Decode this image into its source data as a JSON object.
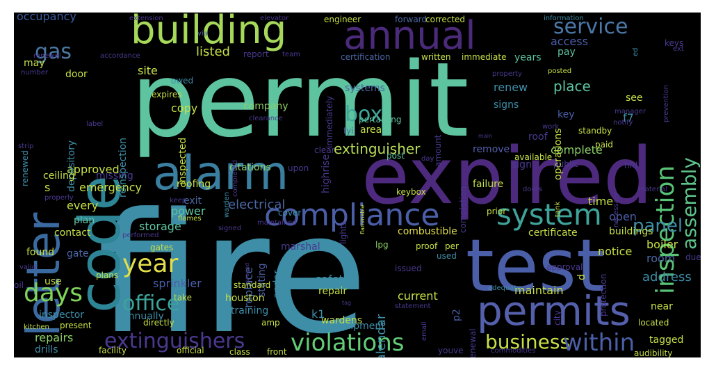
{
  "colors": {
    "background": "#000000",
    "frame": "#ffffff",
    "palette": [
      "#440154",
      "#472c7a",
      "#3b528b",
      "#2c728e",
      "#21908d",
      "#27ad81",
      "#5cc863",
      "#aadc32",
      "#fde725"
    ]
  },
  "words": [
    {
      "text": "permit",
      "color": "#5ec4a0"
    },
    {
      "text": "fire",
      "color": "#3e8ea8"
    },
    {
      "text": "expired",
      "color": "#4e2a7f"
    },
    {
      "text": "test",
      "color": "#4b5fa8"
    },
    {
      "text": "code",
      "color": "#2e8596"
    },
    {
      "text": "letter",
      "color": "#3b6aa0"
    },
    {
      "text": "alarm",
      "color": "#3a7fa0"
    },
    {
      "text": "building",
      "color": "#a6d85a"
    },
    {
      "text": "annual",
      "color": "#4b2a7a"
    },
    {
      "text": "permits",
      "color": "#5560ad"
    },
    {
      "text": "compliance",
      "color": "#4b5fa8"
    },
    {
      "text": "system",
      "color": "#3fa39a"
    },
    {
      "text": "inspection",
      "color": "#58c276"
    },
    {
      "text": "service",
      "color": "#4a78a8"
    },
    {
      "text": "assembly",
      "color": "#5dc38a"
    },
    {
      "text": "violations",
      "color": "#64cd78"
    },
    {
      "text": "business",
      "color": "#c7e045"
    },
    {
      "text": "within",
      "color": "#4b5fa8"
    },
    {
      "text": "extinguishers",
      "color": "#4b3990"
    },
    {
      "text": "office",
      "color": "#3da39a"
    },
    {
      "text": "year",
      "color": "#e3df4a"
    },
    {
      "text": "days",
      "color": "#7fd35a"
    },
    {
      "text": "gas",
      "color": "#4a7aa4"
    },
    {
      "text": "box",
      "color": "#40a69a"
    },
    {
      "text": "panel",
      "color": "#3e8ea8"
    },
    {
      "text": "extinguisher",
      "color": "#b9df56"
    },
    {
      "text": "electrical",
      "color": "#4b68a5"
    },
    {
      "text": "emergency",
      "color": "#c7e045"
    },
    {
      "text": "repairs",
      "color": "#8cd068"
    },
    {
      "text": "k1",
      "color": "#3e8ea8"
    },
    {
      "text": "p2",
      "color": "#4b5fa8"
    },
    {
      "text": "occupancy",
      "color": "#3b5ba0"
    },
    {
      "text": "listed",
      "color": "#c7e045"
    },
    {
      "text": "site",
      "color": "#c7e045"
    },
    {
      "text": "may",
      "color": "#c7e045"
    },
    {
      "text": "access",
      "color": "#4b5fa8"
    },
    {
      "text": "pay",
      "color": "#5ec4a0"
    },
    {
      "text": "place",
      "color": "#5ec4a0"
    },
    {
      "text": "renew",
      "color": "#3e8ea8"
    },
    {
      "text": "door",
      "color": "#c7e045"
    },
    {
      "text": "copy",
      "color": "#c7e045"
    },
    {
      "text": "company",
      "color": "#8cd068"
    },
    {
      "text": "systems",
      "color": "#4b68a5"
    },
    {
      "text": "signs",
      "color": "#3e8ea8"
    },
    {
      "text": "key",
      "color": "#4b5fa8"
    },
    {
      "text": "f7",
      "color": "#3e8ea8"
    },
    {
      "text": "citations",
      "color": "#8cd068"
    },
    {
      "text": "area",
      "color": "#c7e045"
    },
    {
      "text": "approved",
      "color": "#c7e045"
    },
    {
      "text": "complete",
      "color": "#8cd068"
    },
    {
      "text": "remove",
      "color": "#5560ad"
    },
    {
      "text": "sign",
      "color": "#4b3990"
    },
    {
      "text": "time",
      "color": "#c7e045"
    },
    {
      "text": "every",
      "color": "#c7e045"
    },
    {
      "text": "exit",
      "color": "#4b68a5"
    },
    {
      "text": "power",
      "color": "#5ec4a0"
    },
    {
      "text": "plan",
      "color": "#5ec4a0"
    },
    {
      "text": "storage",
      "color": "#5ec4a0"
    },
    {
      "text": "replace",
      "color": "#4b68a5"
    },
    {
      "text": "stating",
      "color": "#4b5fa8"
    },
    {
      "text": "certificate",
      "color": "#c7e045"
    },
    {
      "text": "open",
      "color": "#4b5fa8"
    },
    {
      "text": "combustible",
      "color": "#e3df4a"
    },
    {
      "text": "marshal",
      "color": "#4b3990"
    },
    {
      "text": "andor",
      "color": "#3e8ea8"
    },
    {
      "text": "lpg",
      "color": "#8cd068"
    },
    {
      "text": "boiler",
      "color": "#c7e045"
    },
    {
      "text": "room",
      "color": "#4b68a5"
    },
    {
      "text": "notice",
      "color": "#c7e045"
    },
    {
      "text": "gate",
      "color": "#4b68a5"
    },
    {
      "text": "sprinkler",
      "color": "#4b5fa8"
    },
    {
      "text": "safety",
      "color": "#3e8ea8"
    },
    {
      "text": "houston",
      "color": "#c7e045"
    },
    {
      "text": "repair",
      "color": "#c7e045"
    },
    {
      "text": "current",
      "color": "#c7e045"
    },
    {
      "text": "maintain",
      "color": "#c7e045"
    },
    {
      "text": "address",
      "color": "#3e8ea8"
    },
    {
      "text": "inspector",
      "color": "#3e8ea8"
    },
    {
      "text": "annually",
      "color": "#3e8ea8"
    },
    {
      "text": "training",
      "color": "#3e8ea8"
    },
    {
      "text": "wardens",
      "color": "#c7e045"
    },
    {
      "text": "calendar",
      "color": "#3e8ea8"
    },
    {
      "text": "equipment",
      "color": "#3e8ea8"
    },
    {
      "text": "drills",
      "color": "#3e8ea8"
    },
    {
      "text": "near",
      "color": "#c7e045"
    },
    {
      "text": "tagged",
      "color": "#c7e045"
    },
    {
      "text": "missing",
      "color": "#4b3990"
    },
    {
      "text": "depository",
      "color": "#3e8ea8"
    },
    {
      "text": "reinspection",
      "color": "#3e8ea8"
    },
    {
      "text": "inspected",
      "color": "#c7e045"
    },
    {
      "text": "highrise",
      "color": "#4b3990"
    },
    {
      "text": "immediately",
      "color": "#4b3990"
    },
    {
      "text": "amount",
      "color": "#4b3990"
    },
    {
      "text": "completion",
      "color": "#4b3990"
    },
    {
      "text": "operations",
      "color": "#c7e045"
    },
    {
      "text": "renewed",
      "color": "#3e8ea8"
    },
    {
      "text": "renewal",
      "color": "#4b3990"
    },
    {
      "text": "lights",
      "color": "#4b3990"
    },
    {
      "text": "protection",
      "color": "#4b3990"
    },
    {
      "text": "roofing",
      "color": "#c7e045"
    },
    {
      "text": "roof",
      "color": "#4b3990"
    },
    {
      "text": "standby",
      "color": "#c7e045"
    },
    {
      "text": "see",
      "color": "#c7e045"
    },
    {
      "text": "public",
      "color": "#4b3990"
    },
    {
      "text": "hfd",
      "color": "#4b3990"
    },
    {
      "text": "pertaining",
      "color": "#5ec4a0"
    },
    {
      "text": "fyi",
      "color": "#4b68a5"
    },
    {
      "text": "post",
      "color": "#5ec4a0"
    },
    {
      "text": "years",
      "color": "#5ec4a0"
    },
    {
      "text": "corrected",
      "color": "#c7e045"
    },
    {
      "text": "forward",
      "color": "#4b68a5"
    },
    {
      "text": "information",
      "color": "#3e8ea8"
    },
    {
      "text": "keys",
      "color": "#4b3990"
    },
    {
      "text": "engineer",
      "color": "#c7e045"
    },
    {
      "text": "extension",
      "color": "#4b3990"
    },
    {
      "text": "elevator",
      "color": "#4b3990"
    },
    {
      "text": "via",
      "color": "#4b68a5"
    },
    {
      "text": "report",
      "color": "#4b3990"
    },
    {
      "text": "team",
      "color": "#4b3990"
    },
    {
      "text": "certification",
      "color": "#4b68a5"
    },
    {
      "text": "written",
      "color": "#c7e045"
    },
    {
      "text": "immediate",
      "color": "#c7e045"
    },
    {
      "text": "renewel",
      "color": "#4b3990"
    },
    {
      "text": "accordance",
      "color": "#4b3990"
    },
    {
      "text": "number",
      "color": "#4b3990"
    },
    {
      "text": "owed",
      "color": "#3e8ea8"
    },
    {
      "text": "expires",
      "color": "#c7e045"
    },
    {
      "text": "label",
      "color": "#4b3990"
    },
    {
      "text": "property",
      "color": "#4b3990"
    },
    {
      "text": "posted",
      "color": "#c7e045"
    },
    {
      "text": "ed",
      "color": "#3e8ea8"
    },
    {
      "text": "ext",
      "color": "#4b3990"
    },
    {
      "text": "manager",
      "color": "#4b3990"
    },
    {
      "text": "notify",
      "color": "#4b3990"
    },
    {
      "text": "work",
      "color": "#4b3990"
    },
    {
      "text": "main",
      "color": "#4b3990"
    },
    {
      "text": "clearance",
      "color": "#4b3990"
    },
    {
      "text": "strip",
      "color": "#4b3990"
    },
    {
      "text": "completed",
      "color": "#4b3990"
    },
    {
      "text": "clear",
      "color": "#4b3990"
    },
    {
      "text": "paid",
      "color": "#c7e045"
    },
    {
      "text": "available",
      "color": "#c7e045"
    },
    {
      "text": "day",
      "color": "#4b3990"
    },
    {
      "text": "upon",
      "color": "#4b3990"
    },
    {
      "text": "warden",
      "color": "#3e8ea8"
    },
    {
      "text": "ceiling",
      "color": "#c7e045"
    },
    {
      "text": "s",
      "color": "#c7e045"
    },
    {
      "text": "properly",
      "color": "#4b3990"
    },
    {
      "text": "keep",
      "color": "#4b3990"
    },
    {
      "text": "flames",
      "color": "#c7e045"
    },
    {
      "text": "cover",
      "color": "#3e8ea8"
    },
    {
      "text": "maintained",
      "color": "#4b3990"
    },
    {
      "text": "keybox",
      "color": "#c7e045"
    },
    {
      "text": "flammable",
      "color": "#c7e045"
    },
    {
      "text": "doors",
      "color": "#4b3990"
    },
    {
      "text": "material",
      "color": "#4b3990"
    },
    {
      "text": "tank",
      "color": "#c7e045"
    },
    {
      "text": "necessary",
      "color": "#4b3990"
    },
    {
      "text": "prior",
      "color": "#c7e045"
    },
    {
      "text": "buildings",
      "color": "#c7e045"
    },
    {
      "text": "signed",
      "color": "#4b3990"
    },
    {
      "text": "around",
      "color": "#4b3990"
    },
    {
      "text": "contact",
      "color": "#c7e045"
    },
    {
      "text": "performed",
      "color": "#4b3990"
    },
    {
      "text": "gates",
      "color": "#c7e045"
    },
    {
      "text": "proof",
      "color": "#c7e045"
    },
    {
      "text": "used",
      "color": "#3e8ea8"
    },
    {
      "text": "per",
      "color": "#c7e045"
    },
    {
      "text": "due",
      "color": "#4b3990"
    },
    {
      "text": "found",
      "color": "#c7e045"
    },
    {
      "text": "valid",
      "color": "#4b3990"
    },
    {
      "text": "oil",
      "color": "#4b3990"
    },
    {
      "text": "plans",
      "color": "#c7e045"
    },
    {
      "text": "use",
      "color": "#c7e045"
    },
    {
      "text": "issued",
      "color": "#4b3990"
    },
    {
      "text": "approval",
      "color": "#4b3990"
    },
    {
      "text": "adequate",
      "color": "#3e8ea8"
    },
    {
      "text": "standard",
      "color": "#c7e045"
    },
    {
      "text": "take",
      "color": "#c7e045"
    },
    {
      "text": "tag",
      "color": "#4b3990"
    },
    {
      "text": "statement",
      "color": "#4b3990"
    },
    {
      "text": "city",
      "color": "#4b3990"
    },
    {
      "text": "located",
      "color": "#c7e045"
    },
    {
      "text": "kitchen",
      "color": "#c7e045"
    },
    {
      "text": "present",
      "color": "#c7e045"
    },
    {
      "text": "directly",
      "color": "#c7e045"
    },
    {
      "text": "amp",
      "color": "#c7e045"
    },
    {
      "text": "email",
      "color": "#4b3990"
    },
    {
      "text": "facility",
      "color": "#c7e045"
    },
    {
      "text": "official",
      "color": "#c7e045"
    },
    {
      "text": "class",
      "color": "#c7e045"
    },
    {
      "text": "front",
      "color": "#c7e045"
    },
    {
      "text": "youve",
      "color": "#4b3990"
    },
    {
      "text": "commodities",
      "color": "#4b3990"
    },
    {
      "text": "audibility",
      "color": "#c7e045"
    },
    {
      "text": "prevention",
      "color": "#4b3990"
    },
    {
      "text": "d",
      "color": "#c7e045"
    },
    {
      "text": "failure",
      "color": "#c7e045"
    }
  ]
}
